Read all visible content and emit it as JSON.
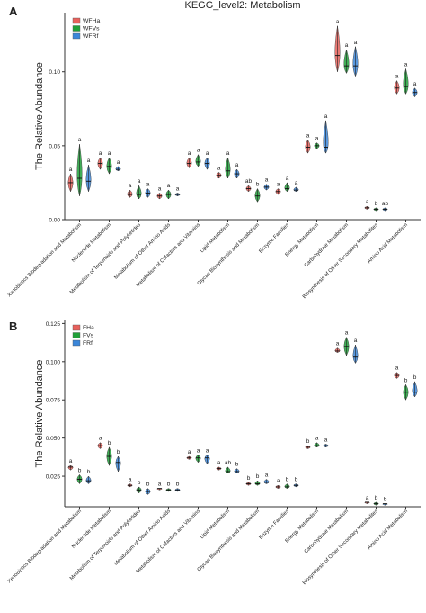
{
  "colors": {
    "red": "#e8615c",
    "green": "#1fa038",
    "blue": "#3b86d9"
  },
  "chart_data": [
    {
      "type": "violin",
      "panel_label": "A",
      "title": "KEGG_level2: Metabolism",
      "ylabel": "The Relative Abundance",
      "ylim": [
        0,
        0.14
      ],
      "yticks": [
        "0.00",
        "0.05",
        "0.10"
      ],
      "ytick_values": [
        0,
        0.05,
        0.1
      ],
      "legend": [
        "WFHa",
        "WFVs",
        "WFRf"
      ],
      "legend_position": "top-left",
      "categories": [
        "Xenobiotics Biodegradation and Metabolism",
        "Nucleotide Metabolism",
        "Metabolism of Terpenoids and Polyketides",
        "Metabolism of Other Amino Acids",
        "Metabolism of Cofactors and Vitamins",
        "Lipid Metabolism",
        "Glycan Biosynthesis and Metabolism",
        "Enzyme Families",
        "Energy Metabolism",
        "Carbohydrate Metabolism",
        "Biosynthesis of Other Secondary Metabolites",
        "Amino Acid Metabolism"
      ],
      "groups": [
        {
          "name": "WFHa",
          "median": [
            0.025,
            0.038,
            0.017,
            0.016,
            0.038,
            0.03,
            0.021,
            0.019,
            0.049,
            0.111,
            0.008,
            0.089
          ],
          "min": [
            0.019,
            0.034,
            0.015,
            0.014,
            0.035,
            0.028,
            0.019,
            0.017,
            0.045,
            0.1,
            0.007,
            0.085
          ],
          "max": [
            0.031,
            0.042,
            0.02,
            0.018,
            0.042,
            0.032,
            0.023,
            0.021,
            0.054,
            0.131,
            0.009,
            0.094
          ],
          "letters": [
            "a",
            "a",
            "a",
            "a",
            "a",
            "a",
            "ab",
            "a",
            "a",
            "a",
            "a",
            "a"
          ]
        },
        {
          "name": "WFVs",
          "median": [
            0.028,
            0.036,
            0.017,
            0.017,
            0.039,
            0.033,
            0.016,
            0.021,
            0.05,
            0.104,
            0.007,
            0.09
          ],
          "min": [
            0.016,
            0.031,
            0.014,
            0.014,
            0.036,
            0.028,
            0.012,
            0.019,
            0.048,
            0.099,
            0.006,
            0.085
          ],
          "max": [
            0.051,
            0.042,
            0.023,
            0.02,
            0.044,
            0.042,
            0.021,
            0.025,
            0.052,
            0.115,
            0.008,
            0.102
          ],
          "letters": [
            "a",
            "a",
            "a",
            "a",
            "a",
            "a",
            "b",
            "a",
            "a",
            "a",
            "b",
            "a"
          ]
        },
        {
          "name": "WFRf",
          "median": [
            0.026,
            0.034,
            0.018,
            0.017,
            0.038,
            0.031,
            0.022,
            0.02,
            0.049,
            0.104,
            0.007,
            0.086
          ],
          "min": [
            0.019,
            0.033,
            0.015,
            0.016,
            0.034,
            0.028,
            0.02,
            0.019,
            0.045,
            0.097,
            0.006,
            0.083
          ],
          "max": [
            0.037,
            0.036,
            0.021,
            0.018,
            0.042,
            0.034,
            0.024,
            0.022,
            0.067,
            0.117,
            0.008,
            0.089
          ],
          "letters": [
            "a",
            "a",
            "a",
            "a",
            "a",
            "a",
            "a",
            "a",
            "a",
            "a",
            "ab",
            "a"
          ]
        }
      ]
    },
    {
      "type": "violin",
      "panel_label": "B",
      "title": "",
      "ylabel": "The Relative Abundance",
      "ylim": [
        0.005,
        0.127
      ],
      "yticks": [
        "0.025",
        "0.050",
        "0.075",
        "0.100",
        "0.125"
      ],
      "ytick_values": [
        0.025,
        0.05,
        0.075,
        0.1,
        0.125
      ],
      "legend": [
        "FHa",
        "FVs",
        "FRf"
      ],
      "legend_position": "top-left",
      "categories": [
        "Xenobiotics Biodegradation and Metabolism",
        "Nucleotide Metabolism",
        "Metabolism of Terpenoids and Polyketides",
        "Metabolism of Other Amino Acids",
        "Metabolism of Cofactors and Vitamins",
        "Lipid Metabolism",
        "Glycan Biosynthesis and Metabolism",
        "Enzyme Families",
        "Energy Metabolism",
        "Carbohydrate Metabolism",
        "Biosynthesis of Other Secondary Metabolites",
        "Amino Acid Metabolism"
      ],
      "groups": [
        {
          "name": "FHa",
          "median": [
            0.031,
            0.045,
            0.019,
            0.017,
            0.037,
            0.03,
            0.02,
            0.018,
            0.044,
            0.107,
            0.008,
            0.091
          ],
          "min": [
            0.029,
            0.043,
            0.018,
            0.016,
            0.036,
            0.029,
            0.019,
            0.017,
            0.043,
            0.106,
            0.007,
            0.089
          ],
          "max": [
            0.032,
            0.047,
            0.02,
            0.017,
            0.038,
            0.031,
            0.021,
            0.019,
            0.045,
            0.109,
            0.008,
            0.093
          ],
          "letters": [
            "a",
            "a",
            "a",
            "a",
            "a",
            "a",
            "b",
            "a",
            "b",
            "a",
            "a",
            "a"
          ]
        },
        {
          "name": "FVs",
          "median": [
            0.023,
            0.038,
            0.016,
            0.016,
            0.037,
            0.028,
            0.02,
            0.018,
            0.045,
            0.11,
            0.007,
            0.08
          ],
          "min": [
            0.02,
            0.032,
            0.014,
            0.015,
            0.034,
            0.027,
            0.019,
            0.017,
            0.044,
            0.104,
            0.006,
            0.075
          ],
          "max": [
            0.026,
            0.044,
            0.018,
            0.017,
            0.039,
            0.031,
            0.022,
            0.02,
            0.047,
            0.116,
            0.008,
            0.085
          ],
          "letters": [
            "b",
            "b",
            "b",
            "b",
            "a",
            "ab",
            "b",
            "b",
            "a",
            "a",
            "b",
            "b"
          ]
        },
        {
          "name": "FRf",
          "median": [
            0.022,
            0.034,
            0.015,
            0.016,
            0.037,
            0.028,
            0.021,
            0.019,
            0.045,
            0.103,
            0.007,
            0.08
          ],
          "min": [
            0.02,
            0.028,
            0.013,
            0.015,
            0.033,
            0.027,
            0.02,
            0.018,
            0.044,
            0.099,
            0.006,
            0.077
          ],
          "max": [
            0.025,
            0.038,
            0.017,
            0.017,
            0.039,
            0.03,
            0.023,
            0.02,
            0.046,
            0.111,
            0.007,
            0.087
          ],
          "letters": [
            "b",
            "b",
            "b",
            "b",
            "a",
            "b",
            "a",
            "b",
            "a",
            "a",
            "b",
            "b"
          ]
        }
      ]
    }
  ]
}
